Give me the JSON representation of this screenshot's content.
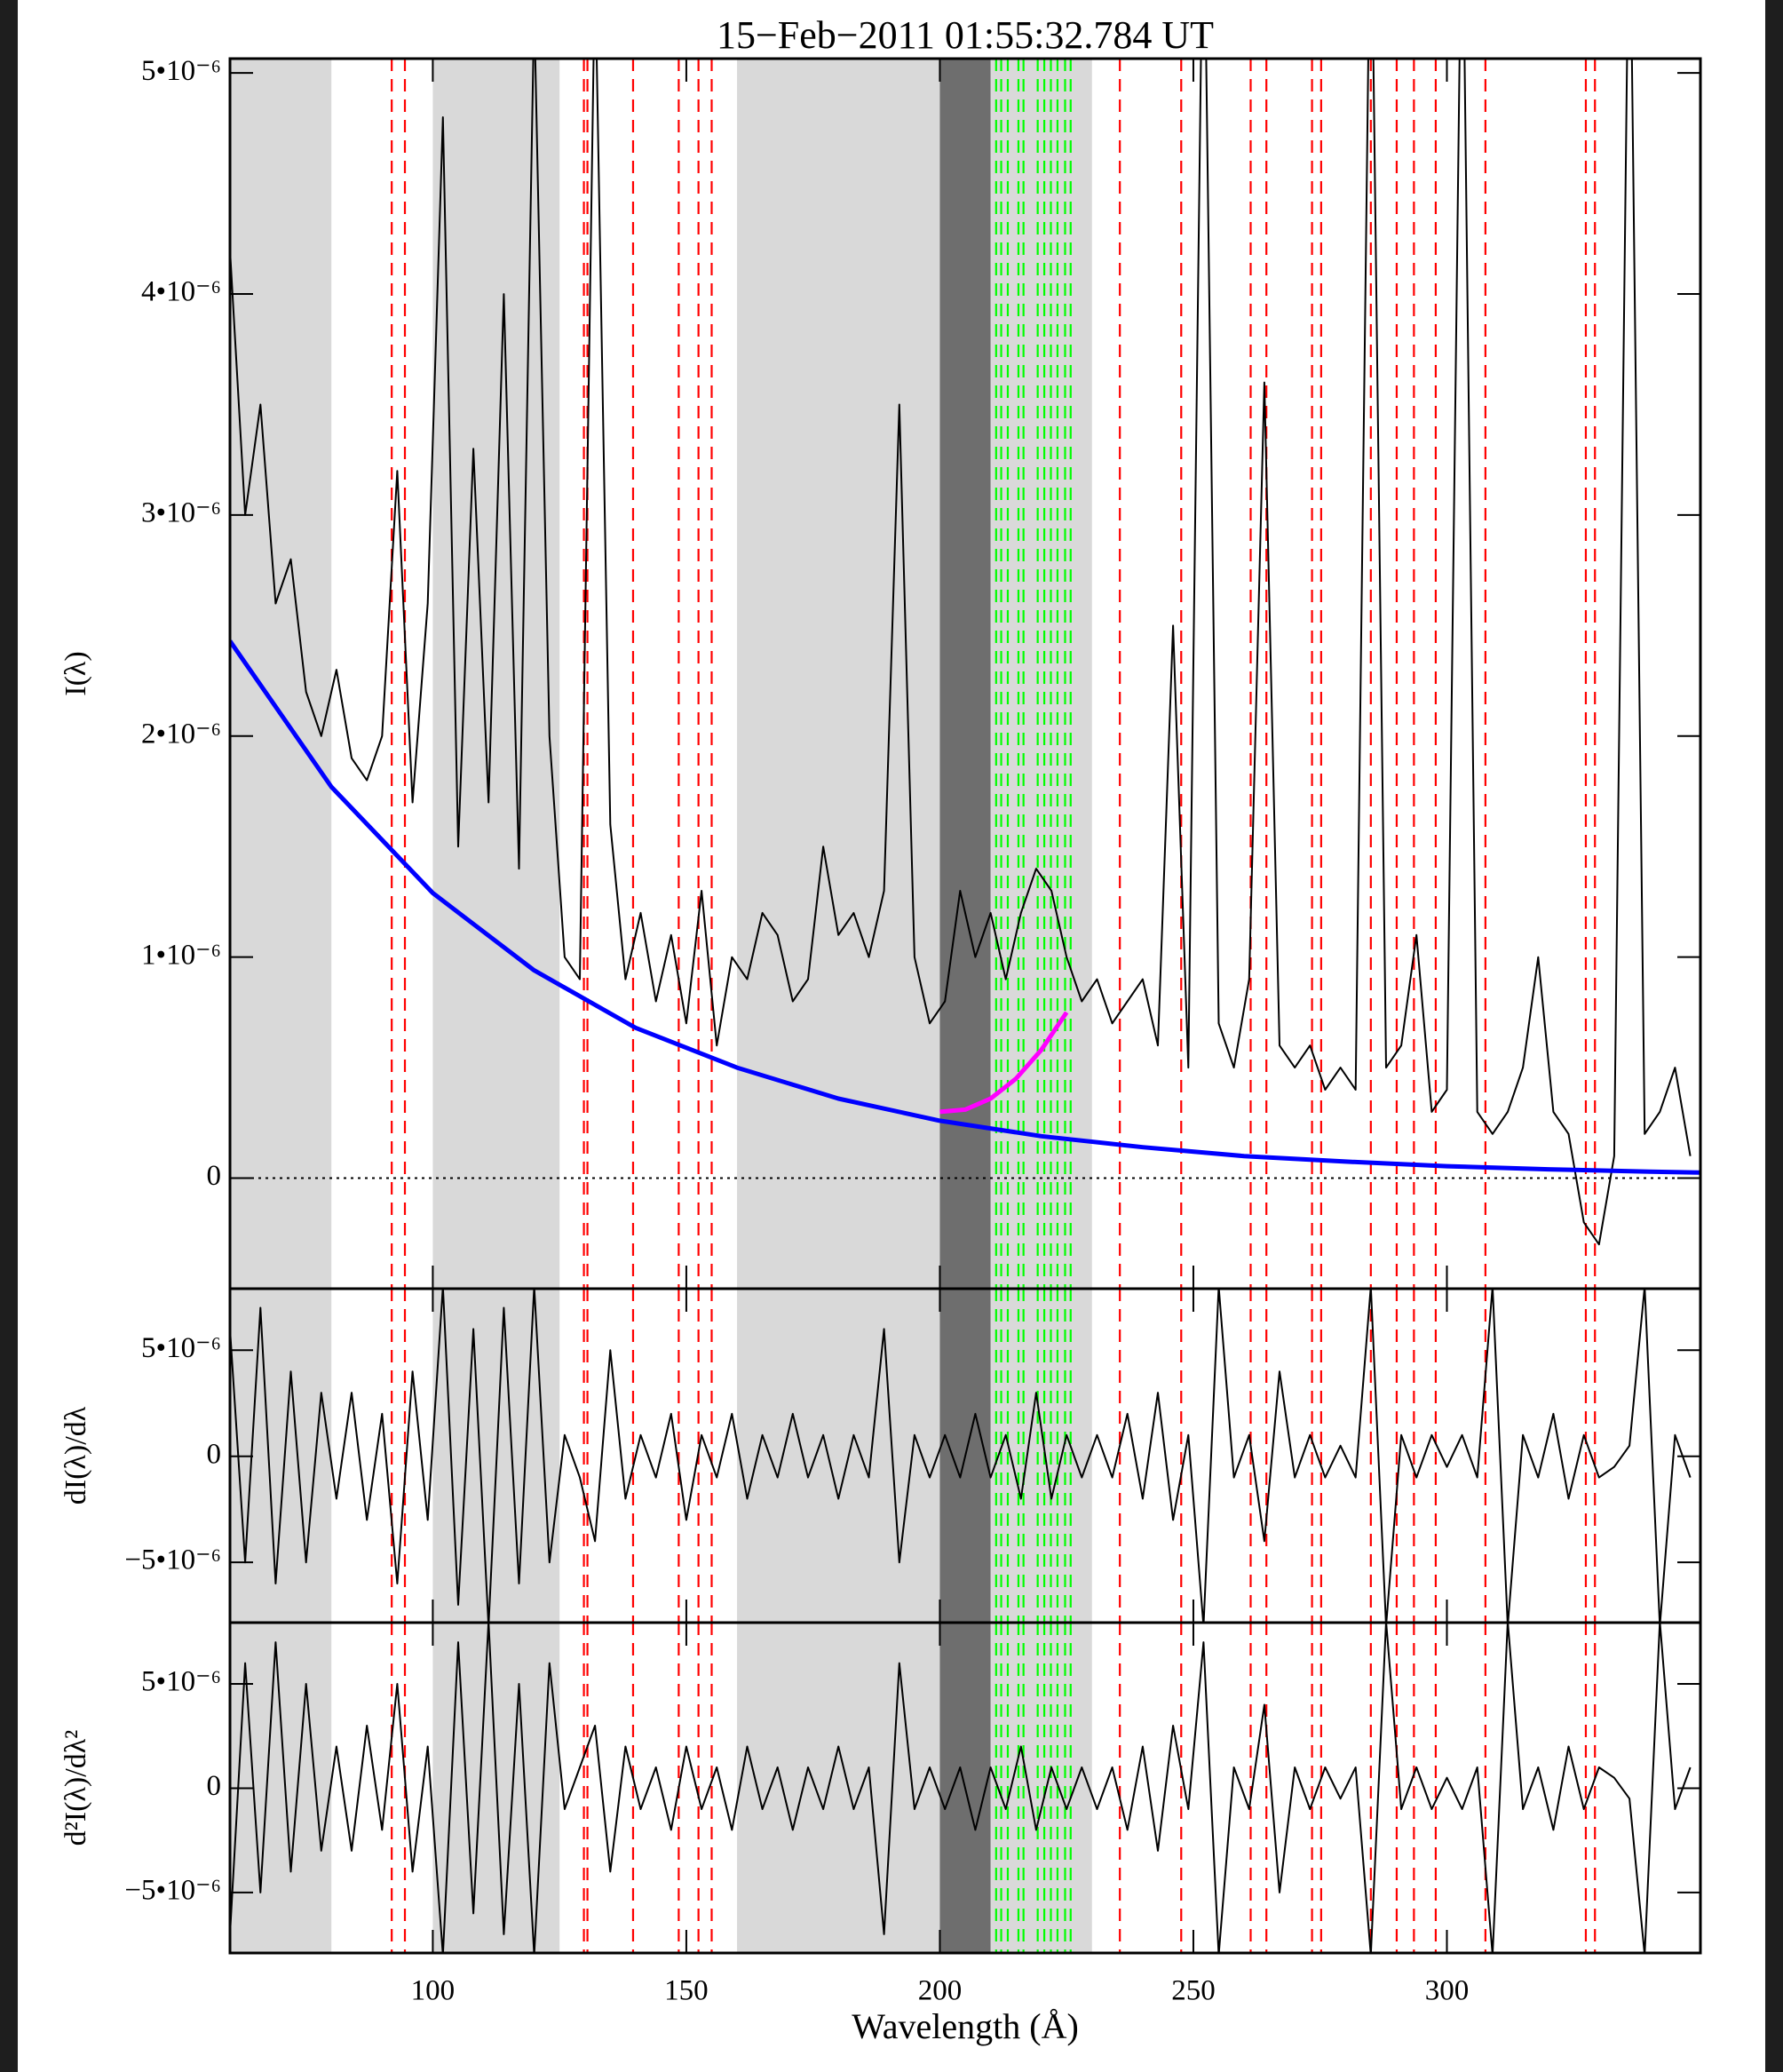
{
  "chart_data": {
    "type": "line",
    "title": "15−Feb−2011 01:55:32.784 UT",
    "xlabel": "Wavelength (Å)",
    "xlim": [
      60,
      350
    ],
    "xticks": [
      100,
      150,
      200,
      250,
      300
    ],
    "spans": [
      {
        "range": [
          60,
          80
        ],
        "color": "#d9d9d9"
      },
      {
        "range": [
          100,
          125
        ],
        "color": "#d9d9d9"
      },
      {
        "range": [
          160,
          200
        ],
        "color": "#d9d9d9"
      },
      {
        "range": [
          210,
          230
        ],
        "color": "#d9d9d9"
      },
      {
        "range": [
          200,
          210
        ],
        "color": "#6e6e6e"
      }
    ],
    "vlines": [
      {
        "color": "#ff0000",
        "x": [
          91.9,
          94.5,
          129.8,
          130.5,
          139.5,
          148.5,
          152.4,
          155.0,
          235.5,
          247.6,
          261.3,
          264.4,
          273.4,
          275.2,
          285.0,
          290.1,
          293.5,
          297.8,
          307.6,
          327.4,
          329.2
        ]
      },
      {
        "color": "#00ff00",
        "x": [
          211.1,
          212.1,
          213.4,
          215.5,
          216.5,
          219.3,
          220.6,
          221.9,
          223.2,
          224.7,
          225.8
        ]
      }
    ],
    "x": [
      60,
      63,
      66,
      69,
      72,
      75,
      78,
      81,
      84,
      87,
      90,
      93,
      96,
      99,
      102,
      105,
      108,
      111,
      114,
      117,
      120,
      123,
      126,
      129,
      132,
      135,
      138,
      141,
      144,
      147,
      150,
      153,
      156,
      159,
      162,
      165,
      168,
      171,
      174,
      177,
      180,
      183,
      186,
      189,
      192,
      195,
      198,
      201,
      204,
      207,
      210,
      213,
      216,
      219,
      222,
      225,
      228,
      231,
      234,
      237,
      240,
      243,
      246,
      249,
      252,
      255,
      258,
      261,
      264,
      267,
      270,
      273,
      276,
      279,
      282,
      285,
      288,
      291,
      294,
      297,
      300,
      303,
      306,
      309,
      312,
      315,
      318,
      321,
      324,
      327,
      330,
      333,
      336,
      339,
      342,
      345,
      348
    ],
    "panels": [
      {
        "ylabel": "I(λ)",
        "ylim": [
          -5e-07,
          5.065e-06
        ],
        "yticks": [
          0,
          {
            "value": 1e-06,
            "label": "1•10⁻⁶"
          },
          {
            "value": 2e-06,
            "label": "2•10⁻⁶"
          },
          {
            "value": 3e-06,
            "label": "3•10⁻⁶"
          },
          {
            "value": 4e-06,
            "label": "4•10⁻⁶"
          },
          {
            "value": 5e-06,
            "label": "5•10⁻⁶"
          }
        ],
        "hline": 0,
        "series": [
          {
            "color": "#000000",
            "values": [
              4.2e-06,
              3e-06,
              3.5e-06,
              2.6e-06,
              2.8e-06,
              2.2e-06,
              2e-06,
              2.3e-06,
              1.9e-06,
              1.8e-06,
              2e-06,
              3.2e-06,
              1.7e-06,
              2.6e-06,
              4.8e-06,
              1.5e-06,
              3.3e-06,
              1.7e-06,
              4e-06,
              1.4e-06,
              5.3e-06,
              2e-06,
              1e-06,
              9e-07,
              5.5e-06,
              1.6e-06,
              9e-07,
              1.2e-06,
              8e-07,
              1.1e-06,
              7e-07,
              1.3e-06,
              6e-07,
              1e-06,
              9e-07,
              1.2e-06,
              1.1e-06,
              8e-07,
              9e-07,
              1.5e-06,
              1.1e-06,
              1.2e-06,
              1e-06,
              1.3e-06,
              3.5e-06,
              1e-06,
              7e-07,
              8e-07,
              1.3e-06,
              1e-06,
              1.2e-06,
              9e-07,
              1.2e-06,
              1.4e-06,
              1.3e-06,
              1e-06,
              8e-07,
              9e-07,
              7e-07,
              8e-07,
              9e-07,
              6e-07,
              2.5e-06,
              5e-07,
              6e-06,
              7e-07,
              5e-07,
              9e-07,
              3.6e-06,
              6e-07,
              5e-07,
              6e-07,
              4e-07,
              5e-07,
              4e-07,
              6e-06,
              5e-07,
              6e-07,
              1.1e-06,
              3e-07,
              4e-07,
              6e-06,
              3e-07,
              2e-07,
              3e-07,
              5e-07,
              1e-06,
              3e-07,
              2e-07,
              -2e-07,
              -3e-07,
              1e-07,
              6e-06,
              2e-07,
              3e-07,
              5e-07,
              1e-07
            ]
          }
        ],
        "curves": [
          {
            "color": "#0000ff",
            "x": [
              60,
              80,
              100,
              120,
              140,
              160,
              180,
              200,
              220,
              240,
              260,
              280,
              300,
              320,
              340,
              350
            ],
            "values": [
              2.43e-06,
              1.77e-06,
              1.29e-06,
              9.4e-07,
              6.8e-07,
              5e-07,
              3.6e-07,
              2.6e-07,
              1.9e-07,
              1.4e-07,
              1e-07,
              7.5e-08,
              5.4e-08,
              4e-08,
              2.9e-08,
              2.5e-08
            ]
          },
          {
            "color": "#ff00ff",
            "x": [
              200,
              205,
              210,
              215,
              220,
              225
            ],
            "values": [
              3e-07,
              3.1e-07,
              3.6e-07,
              4.5e-07,
              5.8e-07,
              7.5e-07
            ]
          }
        ]
      },
      {
        "ylabel": "dI(λ)/dλ",
        "ylim": [
          -7.84e-06,
          7.9e-06
        ],
        "yticks": [
          {
            "value": -5e-06,
            "label": "−5•10⁻⁶"
          },
          0,
          {
            "value": 5e-06,
            "label": "5•10⁻⁶"
          }
        ],
        "series": [
          {
            "color": "#000000",
            "values": [
              6e-06,
              -5e-06,
              7e-06,
              -6e-06,
              4e-06,
              -5e-06,
              3e-06,
              -2e-06,
              3e-06,
              -3e-06,
              2e-06,
              -6e-06,
              4e-06,
              -3e-06,
              8e-06,
              -7e-06,
              6e-06,
              -8e-06,
              7e-06,
              -6e-06,
              8e-06,
              -5e-06,
              1e-06,
              -1e-06,
              -4e-06,
              5e-06,
              -2e-06,
              1e-06,
              -1e-06,
              2e-06,
              -3e-06,
              1e-06,
              -1e-06,
              2e-06,
              -2e-06,
              1e-06,
              -1e-06,
              2e-06,
              -1e-06,
              1e-06,
              -2e-06,
              1e-06,
              -1e-06,
              6e-06,
              -5e-06,
              1e-06,
              -1e-06,
              1e-06,
              -1e-06,
              2e-06,
              -1e-06,
              1e-06,
              -2e-06,
              3e-06,
              -2e-06,
              1e-06,
              -1e-06,
              1e-06,
              -1e-06,
              2e-06,
              -2e-06,
              3e-06,
              -3e-06,
              1e-06,
              -8e-06,
              8e-06,
              -1e-06,
              1e-06,
              -4e-06,
              4e-06,
              -1e-06,
              1e-06,
              -1e-06,
              5e-07,
              -1e-06,
              8e-06,
              -8e-06,
              1e-06,
              -1e-06,
              1e-06,
              -5e-07,
              1e-06,
              -1e-06,
              8e-06,
              -8e-06,
              1e-06,
              -1e-06,
              2e-06,
              -2e-06,
              1e-06,
              -1e-06,
              -5e-07,
              5e-07,
              8e-06,
              -8e-06,
              1e-06,
              -1e-06
            ]
          }
        ]
      },
      {
        "ylabel": "d²I(λ)/dλ²",
        "ylim": [
          -7.9e-06,
          7.94e-06
        ],
        "yticks": [
          {
            "value": -5e-06,
            "label": "−5•10⁻⁶"
          },
          0,
          {
            "value": 5e-06,
            "label": "5•10⁻⁶"
          }
        ],
        "series": [
          {
            "color": "#000000",
            "values": [
              -7e-06,
              6e-06,
              -5e-06,
              7e-06,
              -4e-06,
              5e-06,
              -3e-06,
              2e-06,
              -3e-06,
              3e-06,
              -2e-06,
              5e-06,
              -4e-06,
              2e-06,
              -8e-06,
              7e-06,
              -6e-06,
              8e-06,
              -7e-06,
              5e-06,
              -8e-06,
              6e-06,
              -1e-06,
              1e-06,
              3e-06,
              -4e-06,
              2e-06,
              -1e-06,
              1e-06,
              -2e-06,
              2e-06,
              -1e-06,
              1e-06,
              -2e-06,
              2e-06,
              -1e-06,
              1e-06,
              -2e-06,
              1e-06,
              -1e-06,
              2e-06,
              -1e-06,
              1e-06,
              -7e-06,
              6e-06,
              -1e-06,
              1e-06,
              -1e-06,
              1e-06,
              -2e-06,
              1e-06,
              -1e-06,
              2e-06,
              -2e-06,
              1e-06,
              -1e-06,
              1e-06,
              -1e-06,
              1e-06,
              -2e-06,
              2e-06,
              -3e-06,
              3e-06,
              -1e-06,
              7e-06,
              -8e-06,
              1e-06,
              -1e-06,
              4e-06,
              -5e-06,
              1e-06,
              -1e-06,
              1e-06,
              -5e-07,
              1e-06,
              -8e-06,
              8e-06,
              -1e-06,
              1e-06,
              -1e-06,
              5e-07,
              -1e-06,
              1e-06,
              -8e-06,
              8e-06,
              -1e-06,
              1e-06,
              -2e-06,
              2e-06,
              -1e-06,
              1e-06,
              5e-07,
              -5e-07,
              -8e-06,
              8e-06,
              -1e-06,
              1e-06
            ]
          }
        ]
      }
    ]
  }
}
